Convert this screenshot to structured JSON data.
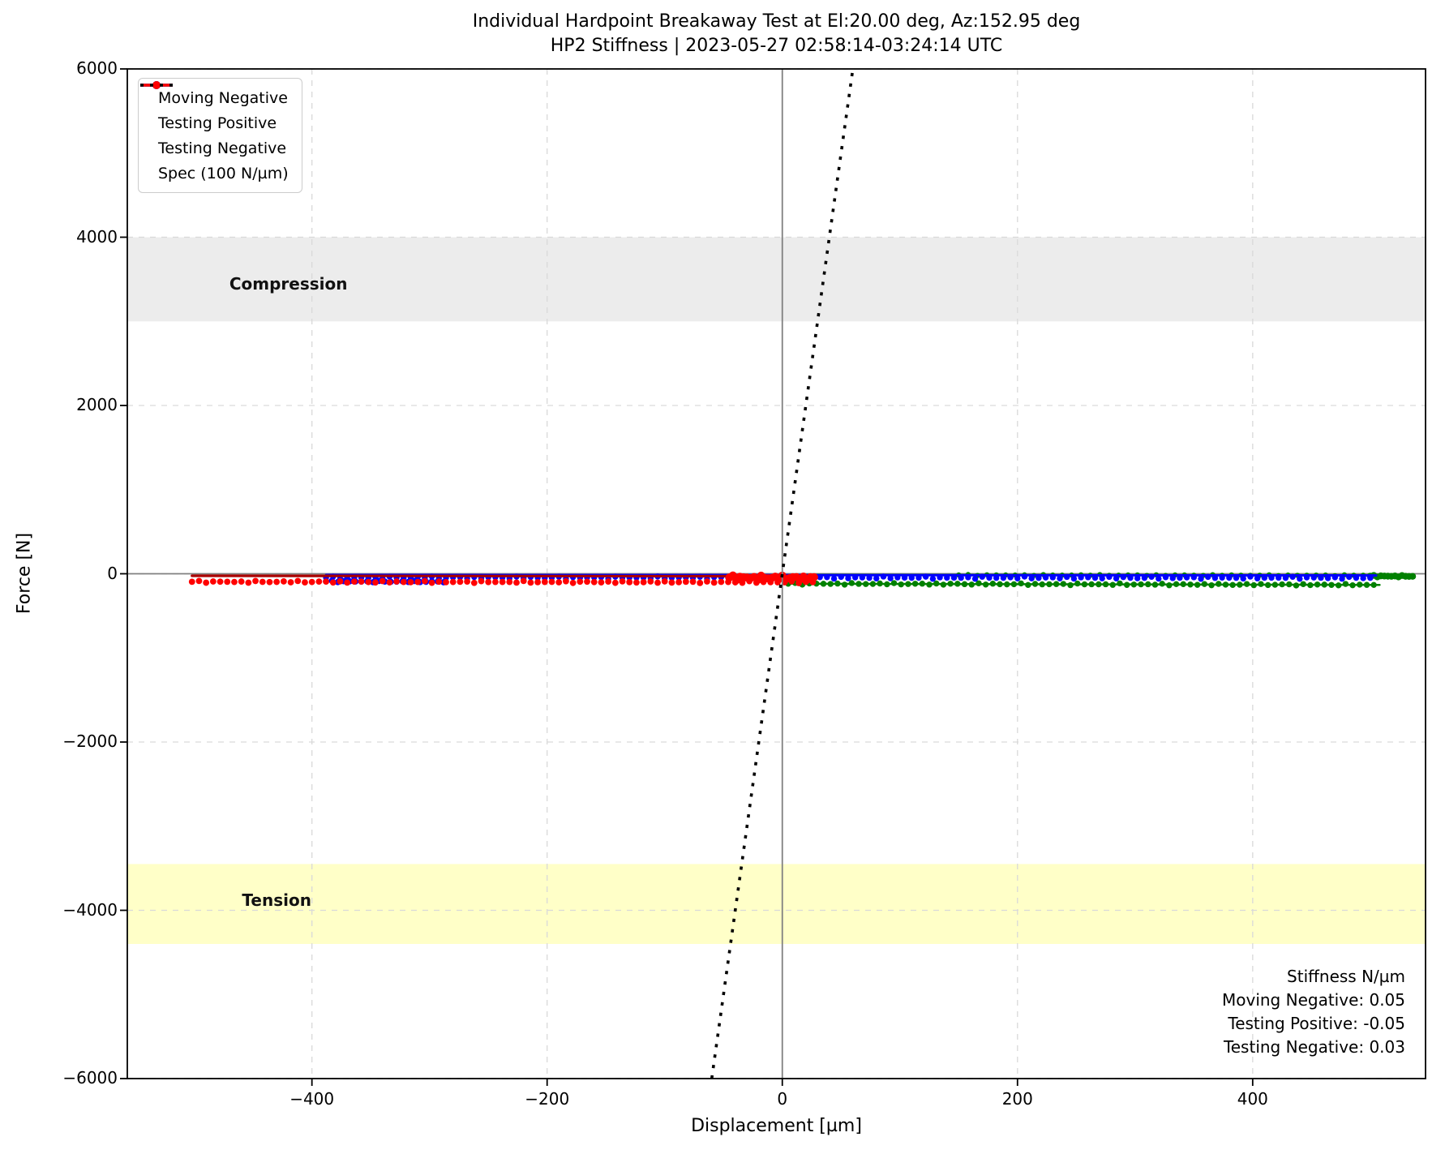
{
  "figure": {
    "title_line1": "Individual Hardpoint Breakaway Test at El:20.00 deg, Az:152.95 deg",
    "title_line2": "HP2 Stiffness | 2023-05-27 02:58:14-03:24:14 UTC"
  },
  "chart_data": {
    "type": "scatter",
    "title": "Individual Hardpoint Breakaway Test at El:20.00 deg, Az:152.95 deg\nHP2 Stiffness | 2023-05-27 02:58:14-03:24:14 UTC",
    "xlabel": "Displacement [µm]",
    "ylabel": "Force [N]",
    "xlim": [
      -557,
      547
    ],
    "ylim": [
      -6000,
      6000
    ],
    "grid": true,
    "xticks": {
      "values": [
        -400,
        -200,
        0,
        200,
        400
      ],
      "labels": [
        "−400",
        "−200",
        "0",
        "200",
        "400"
      ]
    },
    "yticks": {
      "values": [
        6000,
        4000,
        2000,
        0,
        -2000,
        -4000,
        -6000
      ],
      "labels": [
        "6000",
        "4000",
        "2000",
        "0",
        "−2000",
        "−4000",
        "−6000"
      ]
    },
    "bands": [
      {
        "name": "compression",
        "label": "Compression",
        "y_range": [
          3000,
          4000
        ],
        "color": "#ececec",
        "label_x": -420,
        "label_y": 3450
      },
      {
        "name": "tension",
        "label": "Tension",
        "y_range": [
          -4400,
          -3450
        ],
        "color": "#ffffc8",
        "label_x": -430,
        "label_y": -3880
      }
    ],
    "reference_lines": {
      "zero_force": {
        "value": 0,
        "color": "#808080"
      },
      "zero_displacement": {
        "value": 0,
        "color": "#808080"
      },
      "spec": {
        "label": "Spec (100 N/µm)",
        "slope_n_per_um": 100,
        "through": [
          0,
          0
        ],
        "color": "#000000",
        "style": "dotted"
      }
    },
    "legend": [
      {
        "label": "Moving Negative",
        "color": "#008000",
        "style": "line-dot"
      },
      {
        "label": "Testing Positive",
        "color": "#0000ff",
        "style": "line-dot"
      },
      {
        "label": "Testing Negative",
        "color": "#ff0000",
        "style": "line-dot"
      },
      {
        "label": "Spec (100 N/µm)",
        "color": "#000000",
        "style": "dotted"
      }
    ],
    "series": [
      {
        "name": "Moving Negative",
        "color": "#008000",
        "elements": [
          {
            "kind": "line",
            "x": [
              5,
              508
            ],
            "y": [
              -118,
              -132
            ],
            "width": 2.5
          },
          {
            "kind": "markers",
            "x": [
              5,
              508
            ],
            "y": [
              -118,
              -132
            ],
            "amp": 11,
            "step": 6,
            "r": 3.7
          },
          {
            "kind": "line",
            "x": [
              20,
              508
            ],
            "y": [
              -12,
              -18
            ],
            "width": 2.5
          },
          {
            "kind": "markers",
            "x": [
              150,
              505
            ],
            "y": [
              -14,
              -18
            ],
            "amp": 6,
            "step": 8,
            "r": 3.2
          },
          {
            "kind": "markers",
            "x": [
              500,
              538
            ],
            "y": [
              -28,
              -30
            ],
            "amp": 10,
            "step": 3,
            "r": 4.2
          }
        ]
      },
      {
        "name": "Testing Positive",
        "color": "#0000ff",
        "elements": [
          {
            "kind": "line",
            "x": [
              -388,
              505
            ],
            "y": [
              -14,
              -20
            ],
            "width": 3
          },
          {
            "kind": "markers",
            "x": [
              -388,
              505
            ],
            "y": [
              -45,
              -48
            ],
            "amp": 14,
            "step": 6,
            "r": 3.7
          },
          {
            "kind": "markers",
            "x": [
              -388,
              -285
            ],
            "y": [
              -90,
              -95
            ],
            "amp": 9,
            "step": 5,
            "r": 3.9
          }
        ]
      },
      {
        "name": "Testing Negative",
        "color": "#ff0000",
        "elements": [
          {
            "kind": "line",
            "x": [
              -502,
              28
            ],
            "y": [
              -24,
              -30
            ],
            "width": 3.2,
            "line_color": "#aa0000"
          },
          {
            "kind": "markers",
            "x": [
              -502,
              28
            ],
            "y": [
              -95,
              -100
            ],
            "amp": 12,
            "step": 6,
            "r": 3.9
          },
          {
            "kind": "markers",
            "x": [
              -45,
              28
            ],
            "y": [
              -45,
              -50
            ],
            "amp": 30,
            "step": 3,
            "r": 5
          }
        ]
      }
    ],
    "stiffness_annotation": {
      "title": "Stiffness N/µm",
      "lines": [
        "Moving Negative: 0.05",
        "Testing Positive: -0.05",
        "Testing Negative: 0.03"
      ]
    }
  }
}
